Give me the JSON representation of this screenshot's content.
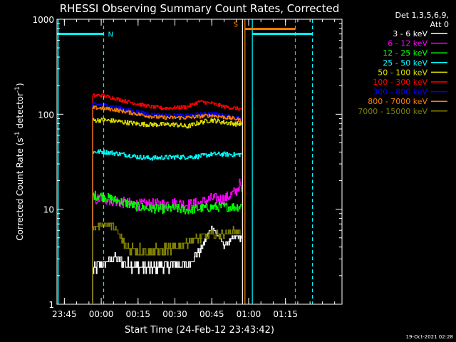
{
  "chart_data": {
    "type": "line",
    "title": "RHESSI Observing Summary Count Rates, Corrected",
    "xlabel": "Start Time (24-Feb-12 23:43:42)",
    "ylabel_main": "Corrected Count Rate (s",
    "ylabel_sup1": "-1",
    "ylabel_mid": " detector",
    "ylabel_sup2": "-1",
    "ylabel_end": ")",
    "yscale": "log",
    "ylim": [
      1,
      1000
    ],
    "xlim_minutes": [
      -18,
      98
    ],
    "x_ticks": [
      {
        "label": "23:45",
        "value": -15
      },
      {
        "label": "00:00",
        "value": 0
      },
      {
        "label": "00:15",
        "value": 15
      },
      {
        "label": "00:30",
        "value": 30
      },
      {
        "label": "00:45",
        "value": 45
      },
      {
        "label": "01:00",
        "value": 60
      },
      {
        "label": "01:15",
        "value": 75
      }
    ],
    "y_ticks": [
      {
        "label": "1",
        "value": 1
      },
      {
        "label": "10",
        "value": 10
      },
      {
        "label": "100",
        "value": 100
      },
      {
        "label": "1000",
        "value": 1000
      }
    ],
    "legend_header": [
      "Det 1,3,5,6,9,",
      "Att 0"
    ],
    "legend_position": "right",
    "timestamp": "19-Oct-2021 02:28",
    "data_window_minutes": [
      -3.5,
      57
    ],
    "series": [
      {
        "name": "3 - 6 keV",
        "color": "#ffffff",
        "points": [
          [
            -3,
            2.4
          ],
          [
            0,
            2.6
          ],
          [
            5,
            3.1
          ],
          [
            10,
            2.7
          ],
          [
            15,
            2.5
          ],
          [
            20,
            2.4
          ],
          [
            25,
            2.5
          ],
          [
            30,
            2.6
          ],
          [
            35,
            2.6
          ],
          [
            40,
            3.6
          ],
          [
            45,
            6.5
          ],
          [
            50,
            4.2
          ],
          [
            55,
            5.2
          ],
          [
            57,
            5
          ]
        ]
      },
      {
        "name": "6 - 12 keV",
        "color": "#ff00ff",
        "points": [
          [
            -3,
            12.5
          ],
          [
            0,
            13
          ],
          [
            5,
            12.3
          ],
          [
            10,
            11.6
          ],
          [
            15,
            11.2
          ],
          [
            20,
            11.3
          ],
          [
            25,
            11.3
          ],
          [
            30,
            11.6
          ],
          [
            35,
            11.2
          ],
          [
            40,
            11.6
          ],
          [
            45,
            13
          ],
          [
            50,
            12.8
          ],
          [
            55,
            15.5
          ],
          [
            56.5,
            19
          ],
          [
            57,
            14
          ]
        ]
      },
      {
        "name": "12 - 25 keV",
        "color": "#00ff00",
        "points": [
          [
            -3,
            14
          ],
          [
            0,
            13.8
          ],
          [
            5,
            12.6
          ],
          [
            10,
            11.6
          ],
          [
            15,
            10.6
          ],
          [
            20,
            10.2
          ],
          [
            25,
            10.1
          ],
          [
            30,
            10.2
          ],
          [
            35,
            9.8
          ],
          [
            40,
            10.2
          ],
          [
            45,
            10.5
          ],
          [
            50,
            10.6
          ],
          [
            55,
            10.6
          ],
          [
            57,
            10.8
          ]
        ]
      },
      {
        "name": "25 - 50 keV",
        "color": "#00ffff",
        "points": [
          [
            -3,
            40
          ],
          [
            0,
            40.5
          ],
          [
            5,
            39
          ],
          [
            10,
            37.5
          ],
          [
            15,
            35.5
          ],
          [
            20,
            34.5
          ],
          [
            25,
            35
          ],
          [
            30,
            35.5
          ],
          [
            35,
            35.5
          ],
          [
            40,
            36
          ],
          [
            45,
            38
          ],
          [
            50,
            38
          ],
          [
            55,
            37.5
          ],
          [
            57,
            38
          ]
        ]
      },
      {
        "name": "50 - 100 keV",
        "color": "#e0e000",
        "points": [
          [
            -3,
            86
          ],
          [
            0,
            87
          ],
          [
            5,
            85
          ],
          [
            10,
            82
          ],
          [
            15,
            79
          ],
          [
            20,
            78
          ],
          [
            25,
            78
          ],
          [
            30,
            78
          ],
          [
            35,
            74
          ],
          [
            40,
            82
          ],
          [
            45,
            87
          ],
          [
            50,
            82
          ],
          [
            55,
            79
          ],
          [
            57,
            80
          ]
        ]
      },
      {
        "name": "100 - 300 keV",
        "color": "#ff0000",
        "points": [
          [
            -3,
            157
          ],
          [
            0,
            158
          ],
          [
            5,
            148
          ],
          [
            10,
            137
          ],
          [
            15,
            128
          ],
          [
            20,
            120
          ],
          [
            25,
            116
          ],
          [
            30,
            117
          ],
          [
            35,
            120
          ],
          [
            40,
            136
          ],
          [
            45,
            130
          ],
          [
            50,
            120
          ],
          [
            55,
            115
          ],
          [
            57,
            113
          ]
        ]
      },
      {
        "name": "300 - 800 keV",
        "color": "#0000ff",
        "points": [
          [
            -3,
            127
          ],
          [
            0,
            126
          ],
          [
            5,
            120
          ],
          [
            10,
            112
          ],
          [
            15,
            105
          ],
          [
            20,
            100
          ],
          [
            25,
            97
          ],
          [
            30,
            97
          ],
          [
            35,
            96
          ],
          [
            40,
            100
          ],
          [
            45,
            102
          ],
          [
            50,
            97
          ],
          [
            55,
            92
          ],
          [
            57,
            88
          ]
        ]
      },
      {
        "name": "800 - 7000 keV",
        "color": "#ff8000",
        "points": [
          [
            -3,
            117
          ],
          [
            0,
            116
          ],
          [
            5,
            112
          ],
          [
            10,
            106
          ],
          [
            15,
            100
          ],
          [
            20,
            95
          ],
          [
            25,
            92
          ],
          [
            30,
            92
          ],
          [
            35,
            92
          ],
          [
            40,
            95
          ],
          [
            45,
            97
          ],
          [
            50,
            93
          ],
          [
            55,
            89
          ],
          [
            57,
            85
          ]
        ]
      },
      {
        "name": "7000 - 15000 keV",
        "color": "#808000",
        "points": [
          [
            -3,
            6.3
          ],
          [
            0,
            7
          ],
          [
            5,
            6.6
          ],
          [
            10,
            4.1
          ],
          [
            15,
            3.7
          ],
          [
            20,
            3.6
          ],
          [
            25,
            3.7
          ],
          [
            30,
            3.9
          ],
          [
            35,
            4.6
          ],
          [
            40,
            5
          ],
          [
            45,
            5.4
          ],
          [
            50,
            5.6
          ],
          [
            55,
            6
          ],
          [
            57,
            5.6
          ]
        ]
      }
    ],
    "flags": [
      {
        "label": "N",
        "color": "#00ffff",
        "y": 700,
        "start": -18,
        "end": 1,
        "end_line": 1
      },
      {
        "label": "",
        "color": "#00ffff",
        "y": 700,
        "start": 61.5,
        "end": 86,
        "start_line": 61.5,
        "end_line": 86
      },
      {
        "label": "S",
        "color": "#ff8000",
        "y": 790,
        "start": 58.5,
        "end": 79,
        "start_line": 58.5,
        "end_line": 79
      }
    ],
    "vlines": [
      {
        "x": -17.5,
        "color": "#00ffff",
        "dash": false
      },
      {
        "x": 1,
        "color": "#00ffff",
        "dash": true
      },
      {
        "x": 57.5,
        "color": "#ffffff",
        "dash": false
      },
      {
        "x": 58.5,
        "color": "#ff8000",
        "dash": false
      },
      {
        "x": 61.5,
        "color": "#00ffff",
        "dash": false
      },
      {
        "x": 79,
        "color": "#ff8000",
        "dash": true
      },
      {
        "x": 86,
        "color": "#00ffff",
        "dash": true
      }
    ]
  }
}
